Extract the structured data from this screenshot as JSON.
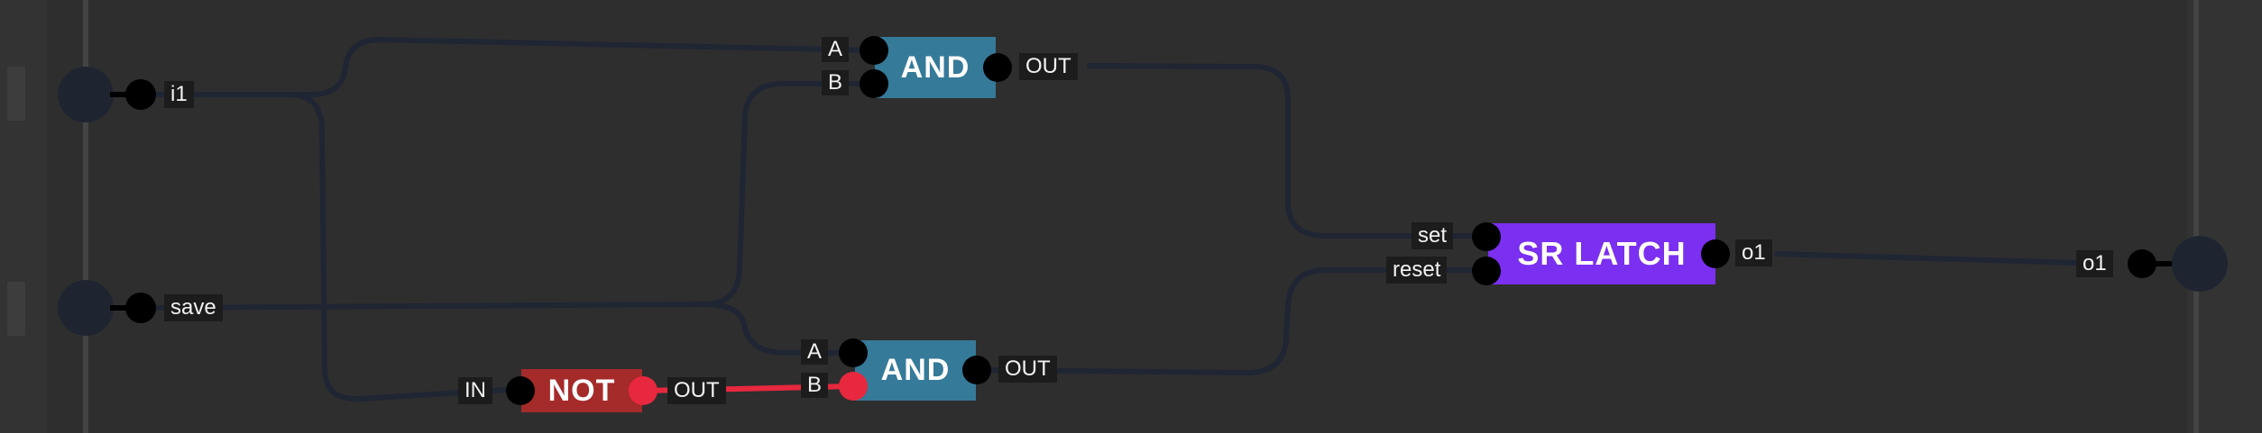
{
  "inputs": [
    {
      "label": "i1"
    },
    {
      "label": "save"
    }
  ],
  "outputs": [
    {
      "label": "o1"
    }
  ],
  "gates": {
    "and_top": {
      "name": "AND",
      "input_a": "A",
      "input_b": "B",
      "output": "OUT"
    },
    "and_bottom": {
      "name": "AND",
      "input_a": "A",
      "input_b": "B",
      "output": "OUT"
    },
    "not": {
      "name": "NOT",
      "input": "IN",
      "output": "OUT"
    },
    "sr_latch": {
      "name": "SR LATCH",
      "input_set": "set",
      "input_reset": "reset",
      "output": "o1"
    }
  },
  "colors": {
    "background": "#2e2e2e",
    "wire_idle": "#1f2533",
    "wire_active": "#e8283e",
    "and_gate": "#367a99",
    "not_gate": "#a52a2a",
    "latch": "#7b2ff0"
  }
}
